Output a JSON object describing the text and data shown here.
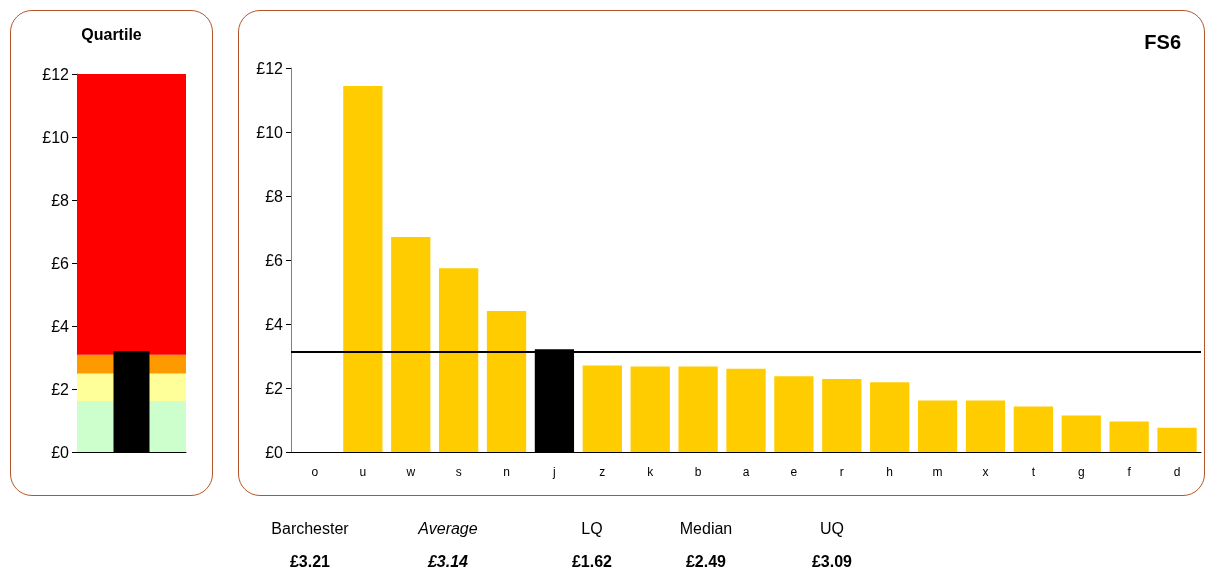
{
  "chart_data": [
    {
      "type": "bar",
      "title": "Quartile",
      "categories": [
        null
      ],
      "values": [
        3.21
      ],
      "color": "#000000",
      "ylim": [
        0,
        12
      ],
      "yticks": [
        {
          "value": 0,
          "label": "£0"
        },
        {
          "value": 2,
          "label": "£2"
        },
        {
          "value": 4,
          "label": "£4"
        },
        {
          "value": 6,
          "label": "£6"
        },
        {
          "value": 8,
          "label": "£8"
        },
        {
          "value": 10,
          "label": "£10"
        },
        {
          "value": 12,
          "label": "£12"
        }
      ],
      "grid": false,
      "bands": [
        {
          "axis": "y",
          "from": 0,
          "to": 1.62,
          "color": "#ccffcc"
        },
        {
          "axis": "y",
          "from": 1.62,
          "to": 2.49,
          "color": "#ffff99"
        },
        {
          "axis": "y",
          "from": 2.49,
          "to": 3.09,
          "color": "#ff9900"
        },
        {
          "axis": "y",
          "from": 3.09,
          "to": 12,
          "color": "#ff0000"
        }
      ]
    },
    {
      "type": "bar",
      "title": "FS6",
      "categories": [
        "o",
        "u",
        "w",
        "s",
        "n",
        "j",
        "z",
        "k",
        "b",
        "a",
        "e",
        "r",
        "h",
        "m",
        "x",
        "t",
        "g",
        "f",
        "d"
      ],
      "values": [
        null,
        11.44,
        6.72,
        5.74,
        4.41,
        3.21,
        2.7,
        2.67,
        2.67,
        2.6,
        2.37,
        2.28,
        2.18,
        1.61,
        1.61,
        1.42,
        1.14,
        0.95,
        0.76
      ],
      "colors": [
        "#ffcc00",
        "#ffcc00",
        "#ffcc00",
        "#ffcc00",
        "#ffcc00",
        "#000000",
        "#ffcc00",
        "#ffcc00",
        "#ffcc00",
        "#ffcc00",
        "#ffcc00",
        "#ffcc00",
        "#ffcc00",
        "#ffcc00",
        "#ffcc00",
        "#ffcc00",
        "#ffcc00",
        "#ffcc00",
        "#ffcc00"
      ],
      "ylim": [
        0,
        12
      ],
      "yticks": [
        {
          "value": 0,
          "label": "£0"
        },
        {
          "value": 2,
          "label": "£2"
        },
        {
          "value": 4,
          "label": "£4"
        },
        {
          "value": 6,
          "label": "£6"
        },
        {
          "value": 8,
          "label": "£8"
        },
        {
          "value": 10,
          "label": "£10"
        },
        {
          "value": 12,
          "label": "£12"
        }
      ],
      "grid": false,
      "ref_lines": [
        {
          "axis": "y",
          "value": 3.14,
          "color": "#000000"
        }
      ],
      "annotations": [
        "Barchester",
        "Average",
        "LQ",
        "Median",
        "UQ",
        "£3.21",
        "£3.14",
        "£1.62",
        "£2.49",
        "£3.09"
      ]
    }
  ]
}
